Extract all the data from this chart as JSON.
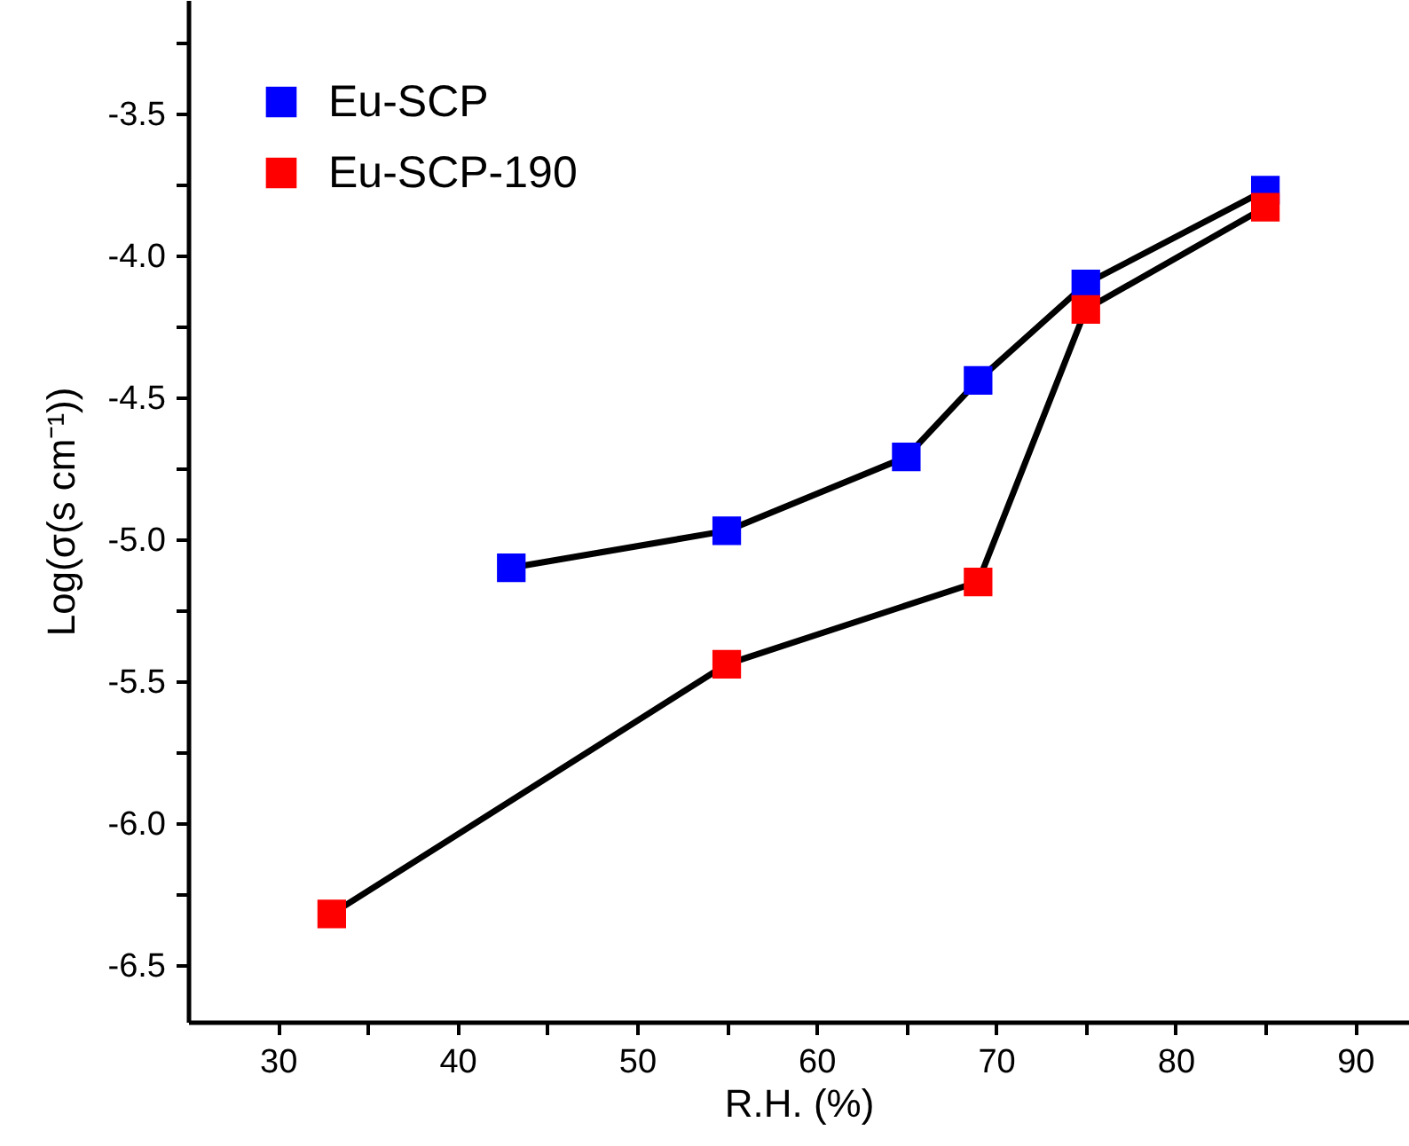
{
  "chart_data": {
    "type": "line",
    "xlabel": "R.H. (%)",
    "ylabel": "Log(σ(s cm⁻¹))",
    "xlim": [
      25,
      93
    ],
    "ylim": [
      -6.7,
      -3.1
    ],
    "xticks": [
      30,
      {
        "value": 35,
        "label": null
      },
      40,
      {
        "value": 45,
        "label": null
      },
      50,
      {
        "value": 55,
        "label": null
      },
      60,
      {
        "value": 65,
        "label": null
      },
      70,
      {
        "value": 75,
        "label": null
      },
      80,
      {
        "value": 85,
        "label": null
      },
      90
    ],
    "yticks": [
      {
        "value": -6.5,
        "label": "-6.5"
      },
      {
        "value": -6.25,
        "label": null
      },
      {
        "value": -6.0,
        "label": "-6.0"
      },
      {
        "value": -5.75,
        "label": null
      },
      {
        "value": -5.5,
        "label": "-5.5"
      },
      {
        "value": -5.25,
        "label": null
      },
      {
        "value": -5.0,
        "label": "-5.0"
      },
      {
        "value": -4.75,
        "label": null
      },
      {
        "value": -4.5,
        "label": "-4.5"
      },
      {
        "value": -4.25,
        "label": null
      },
      {
        "value": -4.0,
        "label": "-4.0"
      },
      {
        "value": -3.75,
        "label": null
      },
      {
        "value": -3.5,
        "label": "-3.5"
      },
      {
        "value": -3.25,
        "label": null
      }
    ],
    "marker": "square",
    "line_style": "solid",
    "grid": false,
    "legend": "top left",
    "series": [
      {
        "name": "Eu-SCP",
        "color": "#0000ff",
        "x": [
          43,
          55,
          65,
          69,
          75,
          85
        ],
        "values": [
          -5.1,
          -4.97,
          -4.71,
          -4.44,
          -4.1,
          -3.77
        ]
      },
      {
        "name": "Eu-SCP-190",
        "color": "#ff0000",
        "x": [
          33,
          55,
          69,
          75,
          85
        ],
        "values": [
          -6.32,
          -5.44,
          -5.15,
          -4.19,
          -3.83
        ]
      }
    ]
  }
}
